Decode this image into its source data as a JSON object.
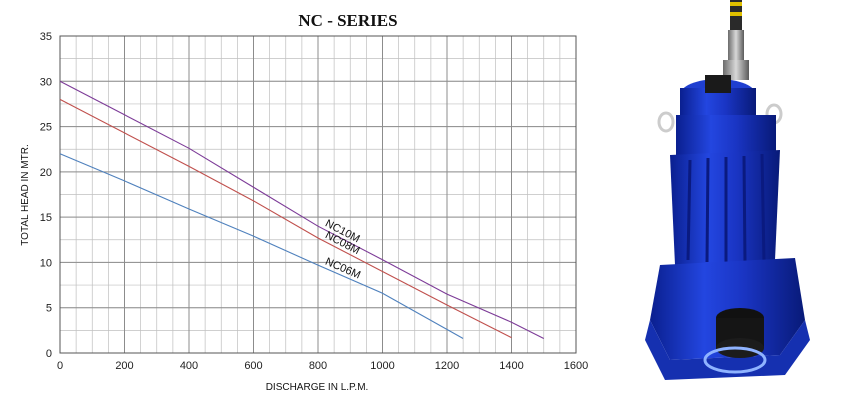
{
  "chart_data": {
    "type": "line",
    "title": "NC - SERIES",
    "xlabel": "DISCHARGE IN L.P.M.",
    "ylabel": "TOTAL HEAD IN MTR.",
    "xlim": [
      0,
      1600
    ],
    "ylim": [
      0,
      35
    ],
    "x_ticks": [
      0,
      200,
      400,
      600,
      800,
      1000,
      1200,
      1400,
      1600
    ],
    "y_ticks": [
      0,
      5,
      10,
      15,
      20,
      25,
      30,
      35
    ],
    "x_minor_step": 50,
    "y_minor_step": 2.5,
    "grid": true,
    "legend": "inline labels on lines",
    "series": [
      {
        "name": "NC10M",
        "color": "#7d3c98",
        "x": [
          0,
          200,
          400,
          600,
          800,
          1000,
          1200,
          1400,
          1500
        ],
        "y": [
          30,
          26.3,
          22.6,
          18.3,
          14.0,
          10.3,
          6.5,
          3.4,
          1.6
        ]
      },
      {
        "name": "NC08M",
        "color": "#c0504d",
        "x": [
          0,
          200,
          400,
          600,
          800,
          1000,
          1200,
          1400
        ],
        "y": [
          28,
          24.3,
          20.6,
          16.8,
          12.7,
          9.0,
          5.3,
          1.7
        ]
      },
      {
        "name": "NC06M",
        "color": "#4f81bd",
        "x": [
          0,
          200,
          400,
          600,
          800,
          1000,
          1250
        ],
        "y": [
          22,
          19.0,
          15.9,
          12.9,
          9.7,
          6.6,
          1.6
        ]
      }
    ]
  },
  "image": {
    "subject": "submersible-pump-icon",
    "accent": "#1f3fd0"
  }
}
